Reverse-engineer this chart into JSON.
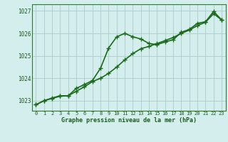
{
  "line1_x": [
    0,
    1,
    2,
    3,
    4,
    5,
    6,
    7,
    8,
    9,
    10,
    11,
    12,
    13,
    14,
    15,
    16,
    17,
    18,
    19,
    20,
    21,
    22,
    23
  ],
  "line1_y": [
    1022.82,
    1023.0,
    1023.1,
    1023.2,
    1023.22,
    1023.55,
    1023.72,
    1023.9,
    1024.45,
    1025.35,
    1025.85,
    1026.0,
    1025.85,
    1025.75,
    1025.55,
    1025.5,
    1025.62,
    1025.72,
    1026.05,
    1026.18,
    1026.45,
    1026.52,
    1026.98,
    1026.6
  ],
  "line2_x": [
    0,
    1,
    2,
    3,
    4,
    5,
    6,
    7,
    8,
    9,
    10,
    11,
    12,
    13,
    14,
    15,
    16,
    17,
    18,
    19,
    20,
    21,
    22,
    23
  ],
  "line2_y": [
    1022.82,
    1023.0,
    1023.12,
    1023.22,
    1023.22,
    1023.42,
    1023.62,
    1023.85,
    1024.0,
    1024.22,
    1024.5,
    1024.82,
    1025.1,
    1025.32,
    1025.42,
    1025.55,
    1025.68,
    1025.82,
    1026.0,
    1026.15,
    1026.35,
    1026.5,
    1026.88,
    1026.6
  ],
  "line_color": "#1a6b1a",
  "bg_color": "#d4eeee",
  "grid_color": "#b0d0d0",
  "xlabel": "Graphe pression niveau de la mer (hPa)",
  "label_color": "#1a5c1a",
  "yticks": [
    1023,
    1024,
    1025,
    1026,
    1027
  ],
  "xticks": [
    0,
    1,
    2,
    3,
    4,
    5,
    6,
    7,
    8,
    9,
    10,
    11,
    12,
    13,
    14,
    15,
    16,
    17,
    18,
    19,
    20,
    21,
    22,
    23
  ],
  "ylim": [
    1022.55,
    1027.3
  ],
  "xlim": [
    -0.5,
    23.5
  ],
  "tick_color": "#1a5c1a",
  "axis_color": "#2d7a2d",
  "marker_size": 2.8,
  "linewidth": 1.2
}
